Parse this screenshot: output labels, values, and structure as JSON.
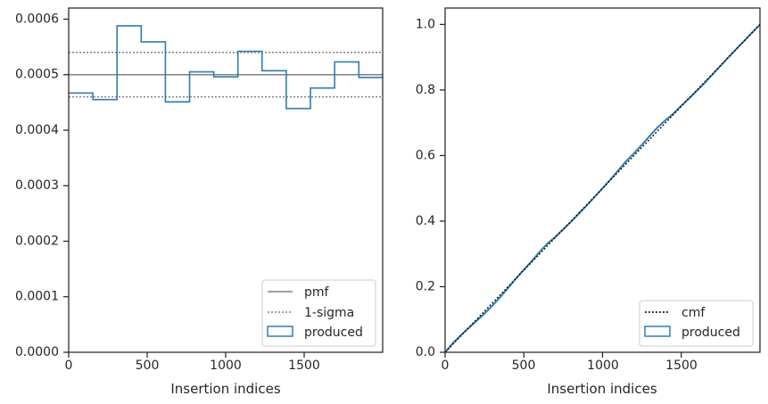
{
  "chart_data": [
    {
      "type": "histogram",
      "xlabel": "Insertion indices",
      "ylabel": "",
      "xlim": [
        0,
        2000
      ],
      "ylim": [
        0,
        0.00062
      ],
      "xticks": [
        0,
        500,
        1000,
        1500
      ],
      "xtick_labels": [
        "0",
        "500",
        "1000",
        "1500"
      ],
      "yticks": [
        0,
        0.0001,
        0.0002,
        0.0003,
        0.0004,
        0.0005,
        0.0006
      ],
      "ytick_labels": [
        "0.0000",
        "0.0001",
        "0.0002",
        "0.0003",
        "0.0004",
        "0.0005",
        "0.0006"
      ],
      "grid": false,
      "legend_position": "lower-right",
      "legend": [
        "pmf",
        "1-sigma",
        "produced"
      ],
      "pmf": 0.0005,
      "sigma_band": [
        0.00046,
        0.00054
      ],
      "bin_edges": [
        0,
        154,
        308,
        462,
        616,
        770,
        924,
        1078,
        1232,
        1386,
        1540,
        1694,
        1848,
        2000
      ],
      "values": [
        0.000467,
        0.000455,
        0.000588,
        0.000559,
        0.000451,
        0.000505,
        0.000496,
        0.000542,
        0.000507,
        0.000439,
        0.000476,
        0.000523,
        0.000495
      ],
      "colors": {
        "pmf": "#808080",
        "sigma": "#808080",
        "produced": "#2f7eb1"
      }
    },
    {
      "type": "line",
      "xlabel": "Insertion indices",
      "ylabel": "",
      "xlim": [
        0,
        2000
      ],
      "ylim": [
        0,
        1.05
      ],
      "xticks": [
        0,
        500,
        1000,
        1500
      ],
      "xtick_labels": [
        "0",
        "500",
        "1000",
        "1500"
      ],
      "yticks": [
        0,
        0.2,
        0.4,
        0.6,
        0.8,
        1.0
      ],
      "ytick_labels": [
        "0.0",
        "0.2",
        "0.4",
        "0.6",
        "0.8",
        "1.0"
      ],
      "grid": false,
      "legend_position": "lower-right",
      "legend": [
        "cmf",
        "produced"
      ],
      "cmf": {
        "x": [
          0,
          2000
        ],
        "y": [
          0,
          1.0
        ]
      },
      "produced": {
        "x": [
          0,
          50,
          100,
          150,
          200,
          250,
          300,
          350,
          400,
          450,
          500,
          550,
          600,
          650,
          700,
          750,
          800,
          850,
          900,
          950,
          1000,
          1050,
          1100,
          1150,
          1200,
          1250,
          1300,
          1350,
          1400,
          1450,
          1500,
          1550,
          1600,
          1650,
          1700,
          1750,
          1800,
          1850,
          1900,
          1950,
          2000
        ],
        "y": [
          0,
          0.028,
          0.052,
          0.074,
          0.096,
          0.118,
          0.142,
          0.168,
          0.196,
          0.225,
          0.252,
          0.278,
          0.306,
          0.332,
          0.352,
          0.375,
          0.398,
          0.423,
          0.448,
          0.474,
          0.5,
          0.527,
          0.555,
          0.583,
          0.607,
          0.633,
          0.66,
          0.686,
          0.708,
          0.728,
          0.752,
          0.775,
          0.798,
          0.822,
          0.848,
          0.874,
          0.9,
          0.925,
          0.95,
          0.975,
          1.0
        ]
      },
      "colors": {
        "cmf": "#000000",
        "produced": "#2f7eb1"
      }
    }
  ]
}
